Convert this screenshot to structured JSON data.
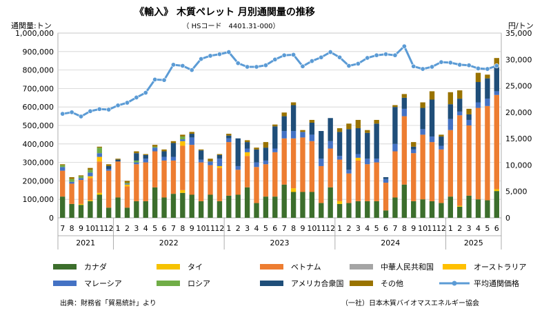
{
  "chart_data": {
    "type": "bar",
    "stacked": true,
    "title": "《輸入》 木質ペレット 月別通関量の推移",
    "subtitle": "（ HSコード　4401.31-000）",
    "left_axis_label": "通関量:トン",
    "right_axis_label": "円/トン",
    "yleft_range": [
      0,
      1000000
    ],
    "yleft_ticks": [
      "0",
      "100,000",
      "200,000",
      "300,000",
      "400,000",
      "500,000",
      "600,000",
      "700,000",
      "800,000",
      "900,000",
      "1,000,000"
    ],
    "yright_range": [
      0,
      35000
    ],
    "yright_ticks": [
      "0",
      "5,000",
      "10,000",
      "15,000",
      "20,000",
      "25,000",
      "30,000",
      "35,000"
    ],
    "month_labels": [
      "7",
      "8",
      "9",
      "10",
      "11",
      "12",
      "1",
      "2",
      "3",
      "4",
      "5",
      "6",
      "7",
      "8",
      "9",
      "10",
      "11",
      "12",
      "1",
      "2",
      "3",
      "4",
      "5",
      "6",
      "7",
      "8",
      "9",
      "10",
      "11",
      "12",
      "1",
      "2",
      "3",
      "4",
      "5",
      "6",
      "7",
      "8",
      "9",
      "10",
      "11",
      "12",
      "1",
      "2",
      "3",
      "4",
      "5",
      "6"
    ],
    "year_groups": [
      {
        "label": "2021",
        "start": 0,
        "count": 6
      },
      {
        "label": "2022",
        "start": 6,
        "count": 12
      },
      {
        "label": "2023",
        "start": 18,
        "count": 12
      },
      {
        "label": "2024",
        "start": 30,
        "count": 12
      },
      {
        "label": "2025",
        "start": 42,
        "count": 6
      }
    ],
    "series": [
      {
        "key": "canada",
        "name": "カナダ",
        "color": "#3c6e2c",
        "values": [
          115000,
          75000,
          70000,
          90000,
          125000,
          55000,
          110000,
          55000,
          90000,
          90000,
          165000,
          110000,
          130000,
          135000,
          125000,
          90000,
          125000,
          90000,
          120000,
          125000,
          165000,
          80000,
          115000,
          115000,
          180000,
          140000,
          140000,
          140000,
          80000,
          165000,
          75000,
          80000,
          90000,
          90000,
          90000,
          40000,
          110000,
          180000,
          90000,
          100000,
          90000,
          80000,
          115000,
          60000,
          120000,
          100000,
          95000,
          145000
        ]
      },
      {
        "key": "thailand",
        "name": "タイ",
        "color": "#f6c200",
        "values": [
          0,
          0,
          5000,
          5000,
          10000,
          0,
          0,
          0,
          0,
          0,
          0,
          0,
          0,
          15000,
          0,
          0,
          0,
          0,
          0,
          0,
          0,
          0,
          0,
          0,
          0,
          20000,
          0,
          0,
          0,
          0,
          15000,
          0,
          0,
          0,
          0,
          0,
          0,
          0,
          0,
          0,
          0,
          0,
          0,
          5000,
          0,
          0,
          0,
          10000
        ]
      },
      {
        "key": "vietnam",
        "name": "ベトナム",
        "color": "#ed7d31",
        "values": [
          140000,
          110000,
          130000,
          120000,
          170000,
          200000,
          195000,
          115000,
          200000,
          210000,
          195000,
          200000,
          180000,
          240000,
          270000,
          210000,
          160000,
          180000,
          290000,
          135000,
          170000,
          195000,
          175000,
          240000,
          250000,
          270000,
          295000,
          275000,
          200000,
          210000,
          225000,
          160000,
          220000,
          200000,
          210000,
          150000,
          250000,
          370000,
          260000,
          350000,
          320000,
          290000,
          360000,
          490000,
          380000,
          495000,
          510000,
          510000
        ]
      },
      {
        "key": "china",
        "name": "中華人民共和国",
        "color": "#a5a5a5",
        "values": [
          0,
          0,
          0,
          0,
          0,
          0,
          0,
          0,
          0,
          0,
          0,
          0,
          0,
          0,
          0,
          0,
          0,
          0,
          0,
          0,
          0,
          0,
          0,
          0,
          0,
          0,
          0,
          0,
          0,
          0,
          0,
          0,
          0,
          0,
          0,
          0,
          0,
          0,
          0,
          0,
          0,
          0,
          0,
          0,
          0,
          0,
          0,
          0
        ]
      },
      {
        "key": "australia",
        "name": "オーストラリア",
        "color": "#ffc000",
        "values": [
          0,
          0,
          0,
          10000,
          25000,
          0,
          0,
          10000,
          0,
          0,
          0,
          0,
          0,
          25000,
          0,
          0,
          0,
          10000,
          0,
          0,
          20000,
          0,
          0,
          0,
          0,
          0,
          0,
          0,
          0,
          0,
          0,
          0,
          15000,
          0,
          0,
          0,
          0,
          0,
          0,
          0,
          0,
          0,
          0,
          0,
          0,
          0,
          0,
          0
        ]
      },
      {
        "key": "malaysia",
        "name": "マレーシア",
        "color": "#4472c4",
        "values": [
          20000,
          10000,
          10000,
          20000,
          20000,
          10000,
          0,
          5000,
          10000,
          20000,
          20000,
          20000,
          20000,
          10000,
          40000,
          15000,
          20000,
          40000,
          20000,
          20000,
          20000,
          25000,
          20000,
          20000,
          40000,
          40000,
          30000,
          35000,
          40000,
          40000,
          20000,
          20000,
          20000,
          30000,
          20000,
          20000,
          40000,
          40000,
          20000,
          30000,
          30000,
          20000,
          60000,
          20000,
          30000,
          30000,
          40000,
          20000
        ]
      },
      {
        "key": "russia",
        "name": "ロシア",
        "color": "#70ad47",
        "values": [
          10000,
          15000,
          10000,
          15000,
          30000,
          0,
          0,
          5000,
          10000,
          0,
          5000,
          0,
          0,
          15000,
          0,
          0,
          0,
          0,
          0,
          0,
          0,
          0,
          0,
          0,
          0,
          0,
          0,
          0,
          0,
          0,
          0,
          0,
          0,
          0,
          0,
          0,
          0,
          0,
          0,
          0,
          0,
          0,
          0,
          0,
          0,
          0,
          0,
          0
        ]
      },
      {
        "key": "usa",
        "name": "アメリカ合衆国",
        "color": "#1f4e79",
        "values": [
          0,
          0,
          0,
          0,
          0,
          15000,
          10000,
          0,
          40000,
          20000,
          0,
          30000,
          75000,
          0,
          20000,
          50000,
          0,
          20000,
          15000,
          150000,
          35000,
          70000,
          70000,
          120000,
          80000,
          140000,
          0,
          65000,
          150000,
          125000,
          130000,
          220000,
          140000,
          140000,
          190000,
          10000,
          200000,
          60000,
          15000,
          115000,
          200000,
          50000,
          80000,
          70000,
          30000,
          110000,
          110000,
          130000
        ]
      },
      {
        "key": "other",
        "name": "その他",
        "color": "#997300",
        "values": [
          5000,
          10000,
          5000,
          10000,
          5000,
          10000,
          5000,
          10000,
          10000,
          5000,
          10000,
          10000,
          10000,
          10000,
          10000,
          5000,
          15000,
          5000,
          10000,
          0,
          10000,
          10000,
          30000,
          10000,
          20000,
          15000,
          10000,
          15000,
          0,
          0,
          20000,
          30000,
          45000,
          15000,
          20000,
          0,
          10000,
          20000,
          25000,
          30000,
          45000,
          10000,
          65000,
          45000,
          30000,
          50000,
          20000,
          50000
        ]
      }
    ],
    "price_line": {
      "key": "price",
      "name": "平均通関価格",
      "color": "#5b9bd5",
      "values": [
        19700,
        20000,
        19200,
        20200,
        20600,
        20500,
        21300,
        21800,
        22800,
        23700,
        26200,
        26100,
        29000,
        28800,
        28000,
        30100,
        30700,
        31000,
        31400,
        29300,
        28600,
        28600,
        28900,
        30000,
        30800,
        30900,
        28700,
        29700,
        30400,
        31400,
        30400,
        28800,
        29200,
        30300,
        30800,
        31000,
        30800,
        32500,
        28700,
        28200,
        28600,
        29500,
        29400,
        29000,
        28900,
        28300,
        28200,
        28800
      ]
    },
    "legend_position": "bottom"
  },
  "footer": {
    "source": "出典：財務省「貿易統計」より",
    "credit": "（一社）日本木質バイオマスエネルギー協会"
  }
}
